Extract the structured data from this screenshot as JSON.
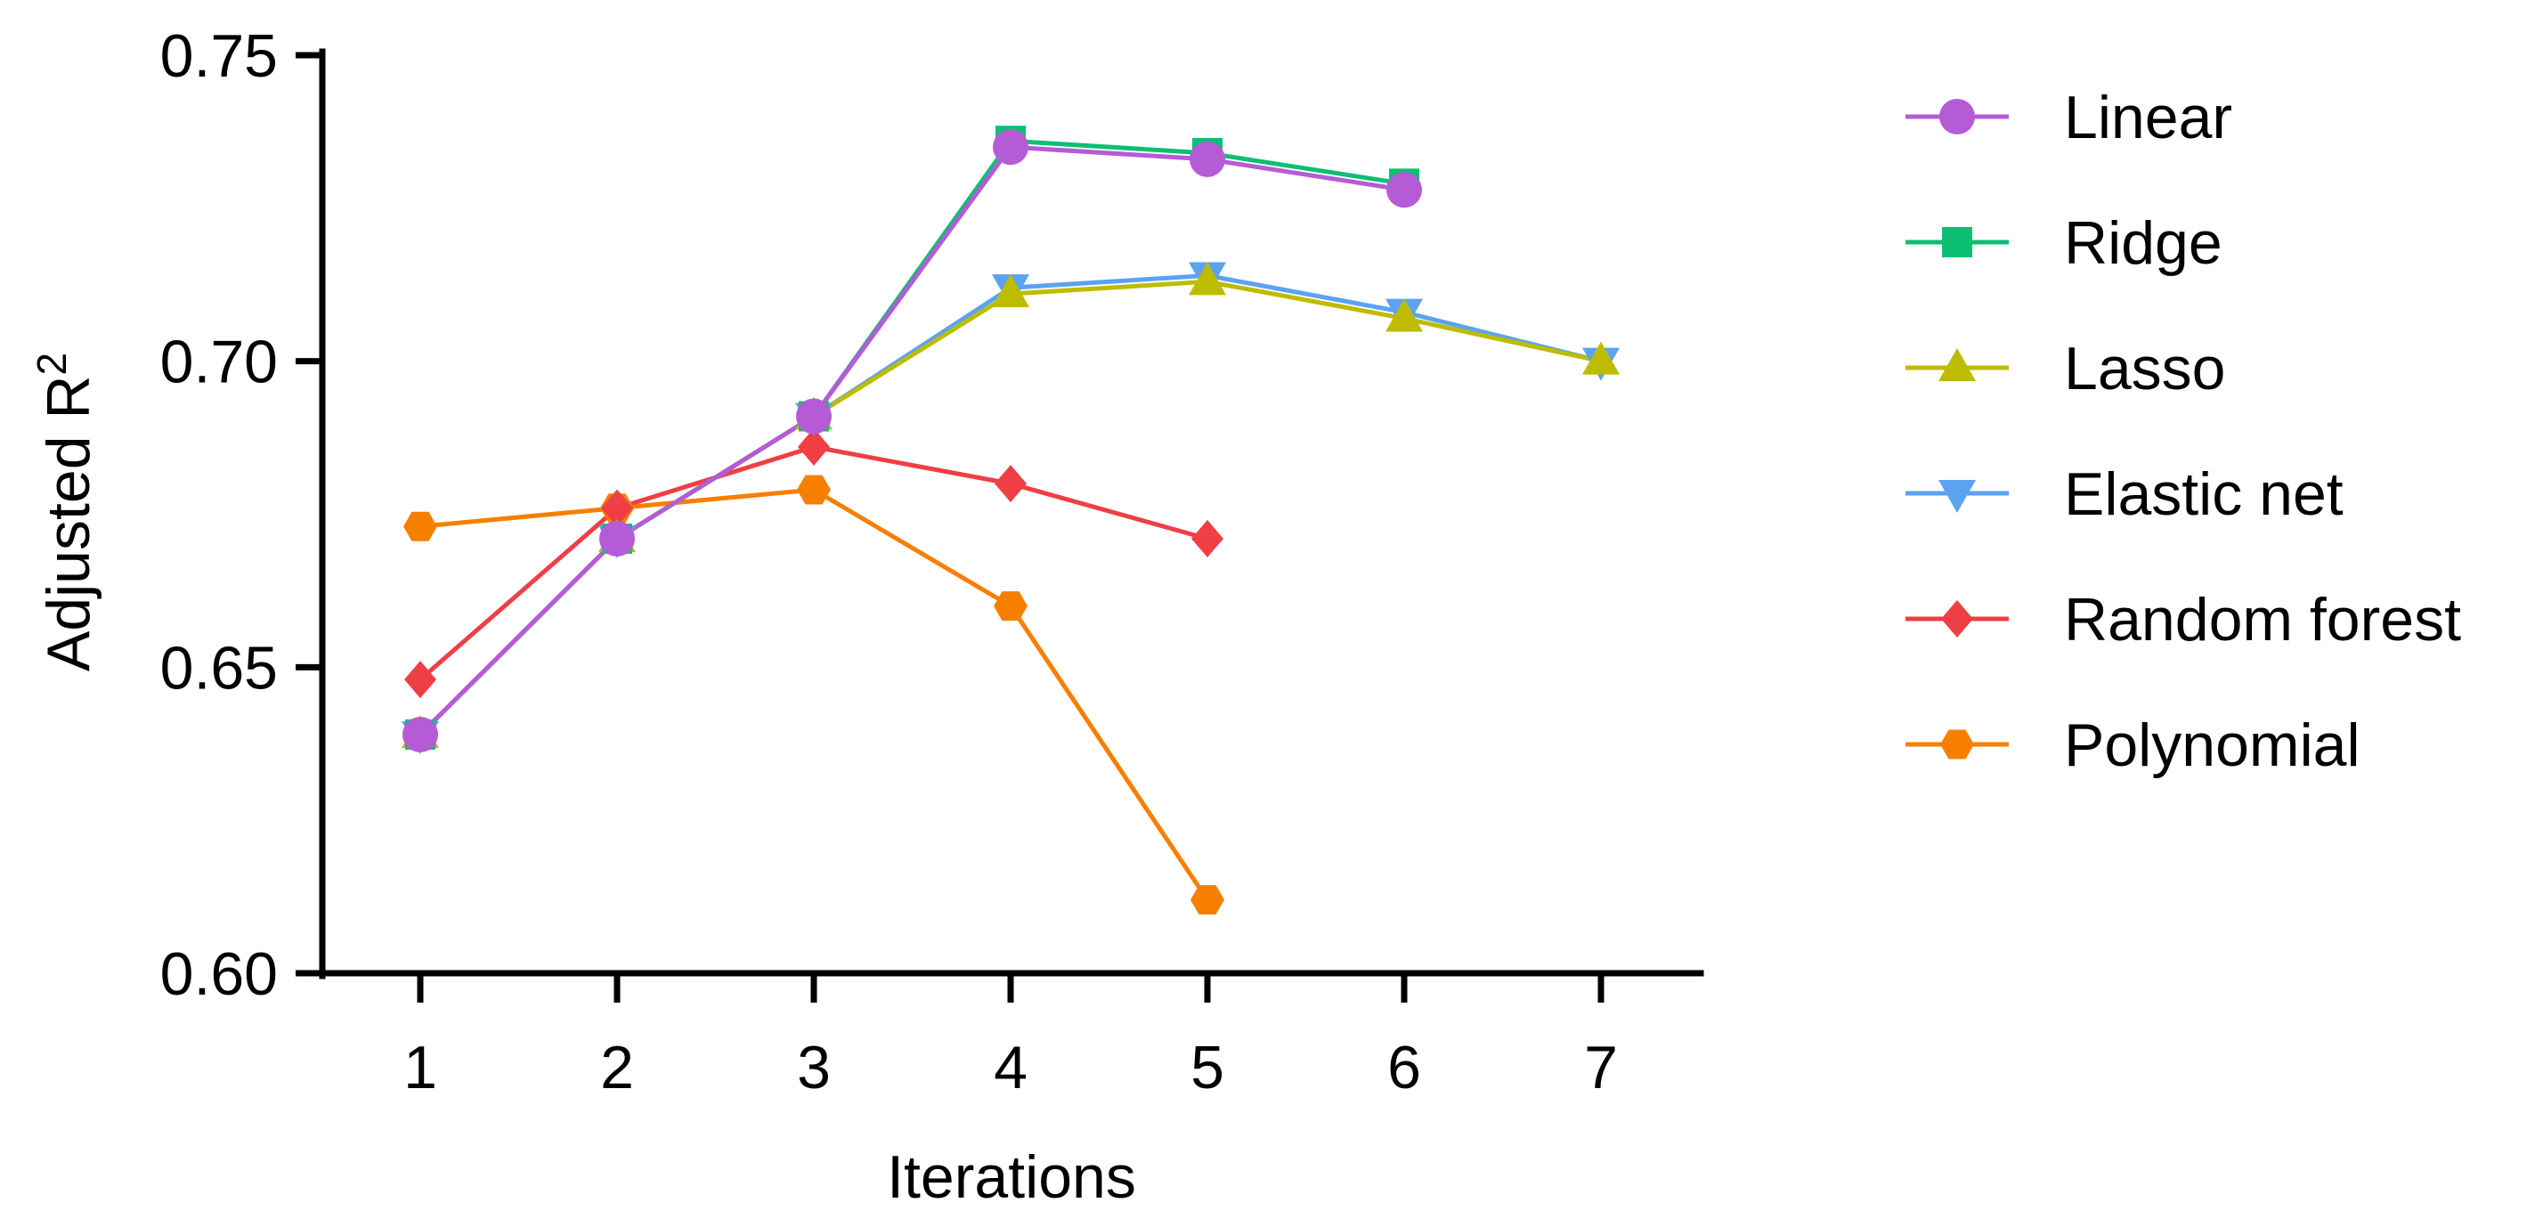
{
  "chart_data": {
    "type": "line",
    "title": "",
    "xlabel": "Iterations",
    "ylabel": "Adjusted R",
    "ylabel_superscript": "2",
    "xlim": [
      0.5,
      7.5
    ],
    "ylim": [
      0.6,
      0.75
    ],
    "xticks": [
      1,
      2,
      3,
      4,
      5,
      6,
      7
    ],
    "xtick_labels": [
      "1",
      "2",
      "3",
      "4",
      "5",
      "6",
      "7"
    ],
    "yticks": [
      0.6,
      0.65,
      0.7,
      0.75
    ],
    "ytick_labels": [
      "0.60",
      "0.65",
      "0.70",
      "0.75"
    ],
    "grid": false,
    "legend_position": "right",
    "series": [
      {
        "name": "Polynomial",
        "color": "#F77F00",
        "marker": "hexagon",
        "x": [
          1,
          2,
          3,
          4,
          5
        ],
        "values": [
          0.673,
          0.676,
          0.679,
          0.66,
          0.612
        ]
      },
      {
        "name": "Random forest",
        "color": "#EF3F45",
        "marker": "diamond",
        "x": [
          1,
          2,
          3,
          4,
          5
        ],
        "values": [
          0.648,
          0.676,
          0.686,
          0.68,
          0.671
        ]
      },
      {
        "name": "Elastic net",
        "color": "#5BA3F1",
        "marker": "triangle-down",
        "x": [
          1,
          2,
          3,
          4,
          5,
          6,
          7
        ],
        "values": [
          0.639,
          0.671,
          0.691,
          0.712,
          0.714,
          0.708,
          0.7
        ]
      },
      {
        "name": "Lasso",
        "color": "#BDBC00",
        "marker": "triangle-up",
        "x": [
          1,
          2,
          3,
          4,
          5,
          6,
          7
        ],
        "values": [
          0.639,
          0.671,
          0.691,
          0.711,
          0.713,
          0.707,
          0.7
        ]
      },
      {
        "name": "Ridge",
        "color": "#0CBF73",
        "marker": "square",
        "x": [
          1,
          2,
          3,
          4,
          5,
          6
        ],
        "values": [
          0.639,
          0.671,
          0.691,
          0.736,
          0.734,
          0.729
        ]
      },
      {
        "name": "Linear",
        "color": "#B65BD6",
        "marker": "circle",
        "x": [
          1,
          2,
          3,
          4,
          5,
          6
        ],
        "values": [
          0.639,
          0.671,
          0.691,
          0.735,
          0.733,
          0.728
        ]
      }
    ],
    "legend_order": [
      "Linear",
      "Ridge",
      "Lasso",
      "Elastic net",
      "Random forest",
      "Polynomial"
    ]
  }
}
